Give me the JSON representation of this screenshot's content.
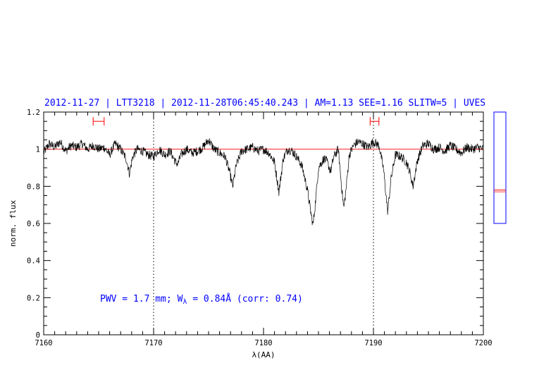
{
  "header": {
    "title": "2012-11-27 | LTT3218 | 2012-11-28T06:45:40.243 | AM=1.13  SEE=1.16  SLITW=5 | UVES"
  },
  "annotation": {
    "pwv_text": "PWV = 1.7 mm; W",
    "w_sub": "λ",
    "w_text": " = 0.84Å (corr: 0.74)"
  },
  "colors": {
    "spectrum": "#000000",
    "continuum": "#ff0000",
    "text": "#0000ff",
    "inset_box": "#0000ff",
    "marker": "#ff0000"
  },
  "chart_data": {
    "type": "line",
    "title": "2012-11-27 | LTT3218 | 2012-11-28T06:45:40.243 | AM=1.13  SEE=1.16  SLITW=5 | UVES",
    "xlabel": "λ(AA)",
    "ylabel": "norm. flux",
    "xlim": [
      7160,
      7200
    ],
    "ylim": [
      0,
      1.2
    ],
    "x_ticks": [
      7160,
      7170,
      7180,
      7190,
      7200
    ],
    "y_ticks": [
      0,
      0.2,
      0.4,
      0.6,
      0.8,
      1,
      1.2
    ],
    "x_tick_labels": [
      "7160",
      "7170",
      "7180",
      "7190",
      "7200"
    ],
    "y_tick_labels": [
      "0",
      "0.2",
      "0.4",
      "0.6",
      "0.8",
      "1",
      "1.2"
    ],
    "vertical_reference_lines": [
      7170,
      7190
    ],
    "continuum_level": 1.0,
    "range_markers": [
      {
        "x_start": 7164.5,
        "x_end": 7165.5,
        "y": 1.15
      },
      {
        "x_start": 7189.7,
        "x_end": 7190.5,
        "y": 1.15
      }
    ],
    "absorption_lines": [
      {
        "x": 7167.8,
        "depth": 0.13
      },
      {
        "x": 7172.2,
        "depth": 0.08
      },
      {
        "x": 7177.2,
        "depth": 0.2
      },
      {
        "x": 7181.4,
        "depth": 0.23
      },
      {
        "x": 7184.5,
        "depth": 0.41
      },
      {
        "x": 7186.1,
        "depth": 0.12
      },
      {
        "x": 7187.3,
        "depth": 0.32
      },
      {
        "x": 7191.3,
        "depth": 0.34
      },
      {
        "x": 7193.6,
        "depth": 0.2
      }
    ],
    "series": [
      {
        "x": [
          7160.0,
          7160.5,
          7161.0,
          7161.5,
          7162.0,
          7162.5,
          7163.0,
          7163.5,
          7164.0,
          7164.5,
          7165.0,
          7165.5,
          7166.0,
          7166.5,
          7167.0,
          7167.5,
          7167.8,
          7168.1,
          7168.5,
          7169.0,
          7169.5,
          7170.0,
          7170.5,
          7171.0,
          7171.5,
          7172.0,
          7172.2,
          7172.5,
          7173.0,
          7173.5,
          7174.0,
          7174.5,
          7175.0,
          7175.5,
          7176.0,
          7176.5,
          7176.9,
          7177.2,
          7177.5,
          7178.0,
          7178.5,
          7179.0,
          7179.5,
          7180.0,
          7180.5,
          7181.0,
          7181.4,
          7181.8,
          7182.2,
          7182.6,
          7183.0,
          7183.5,
          7184.0,
          7184.3,
          7184.5,
          7184.7,
          7185.0,
          7185.5,
          7185.8,
          7186.1,
          7186.4,
          7186.8,
          7187.1,
          7187.3,
          7187.5,
          7187.8,
          7188.2,
          7188.6,
          7189.0,
          7189.5,
          7190.0,
          7190.5,
          7190.9,
          7191.3,
          7191.6,
          7192.0,
          7192.5,
          7193.0,
          7193.3,
          7193.6,
          7194.0,
          7194.5,
          7195.0,
          7195.5,
          7196.0,
          7196.5,
          7197.0,
          7197.5,
          7198.0,
          7198.5,
          7199.0,
          7199.5,
          7200.0
        ],
        "y": [
          0.98,
          1.03,
          1.01,
          1.04,
          0.99,
          1.02,
          1.01,
          1.03,
          1.0,
          1.02,
          1.0,
          1.01,
          0.97,
          1.03,
          1.0,
          0.95,
          0.87,
          0.96,
          1.0,
          0.99,
          0.97,
          0.96,
          1.0,
          0.97,
          0.99,
          0.93,
          0.92,
          0.97,
          1.0,
          0.98,
          0.99,
          1.01,
          1.05,
          1.0,
          0.98,
          0.96,
          0.88,
          0.8,
          0.91,
          0.99,
          1.0,
          1.01,
          0.99,
          1.0,
          0.98,
          0.93,
          0.77,
          0.95,
          1.0,
          0.99,
          0.96,
          0.91,
          0.78,
          0.66,
          0.59,
          0.7,
          0.9,
          0.95,
          0.93,
          0.88,
          0.96,
          1.0,
          0.8,
          0.68,
          0.78,
          0.97,
          1.02,
          1.04,
          1.03,
          1.01,
          1.04,
          1.02,
          0.9,
          0.66,
          0.84,
          0.97,
          0.96,
          0.93,
          0.88,
          0.8,
          0.94,
          1.02,
          1.03,
          1.0,
          1.01,
          0.99,
          1.02,
          1.0,
          0.98,
          1.01,
          1.0,
          1.01,
          1.0
        ]
      }
    ],
    "inset": {
      "type": "box",
      "ylim": [
        0,
        1.2
      ],
      "marker_level": 0.78,
      "box_range": [
        0.6,
        1.2
      ]
    }
  }
}
